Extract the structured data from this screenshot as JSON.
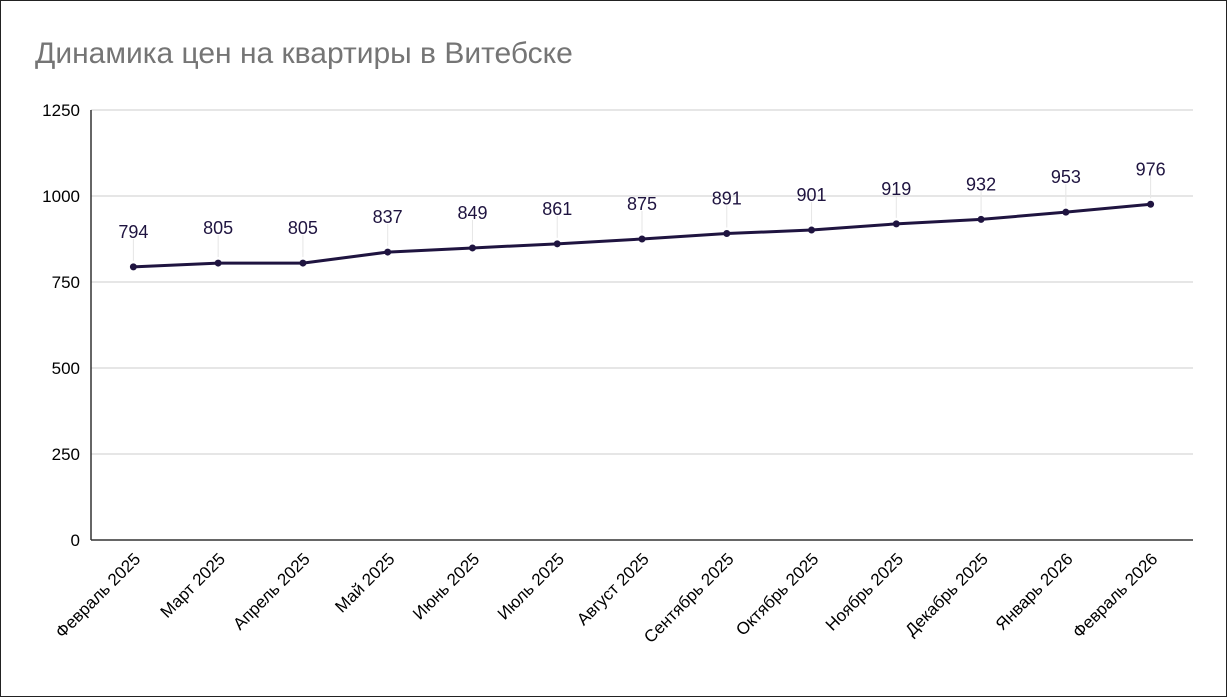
{
  "chart_data": {
    "type": "line",
    "title": "Динамика цен на квартиры в Витебске",
    "xlabel": "",
    "ylabel": "",
    "categories": [
      "Февраль 2025",
      "Март 2025",
      "Апрель 2025",
      "Май 2025",
      "Июнь 2025",
      "Июль 2025",
      "Август 2025",
      "Сентябрь 2025",
      "Октябрь 2025",
      "Ноябрь 2025",
      "Декабрь 2025",
      "Январь 2026",
      "Февраль 2026"
    ],
    "values": [
      794,
      805,
      805,
      837,
      849,
      861,
      875,
      891,
      901,
      919,
      932,
      953,
      976
    ],
    "ylim": [
      0,
      1250
    ],
    "yticks": [
      0,
      250,
      500,
      750,
      1000,
      1250
    ],
    "grid": true,
    "data_labels": true,
    "line_color": "#1f1440",
    "legend": "none"
  }
}
